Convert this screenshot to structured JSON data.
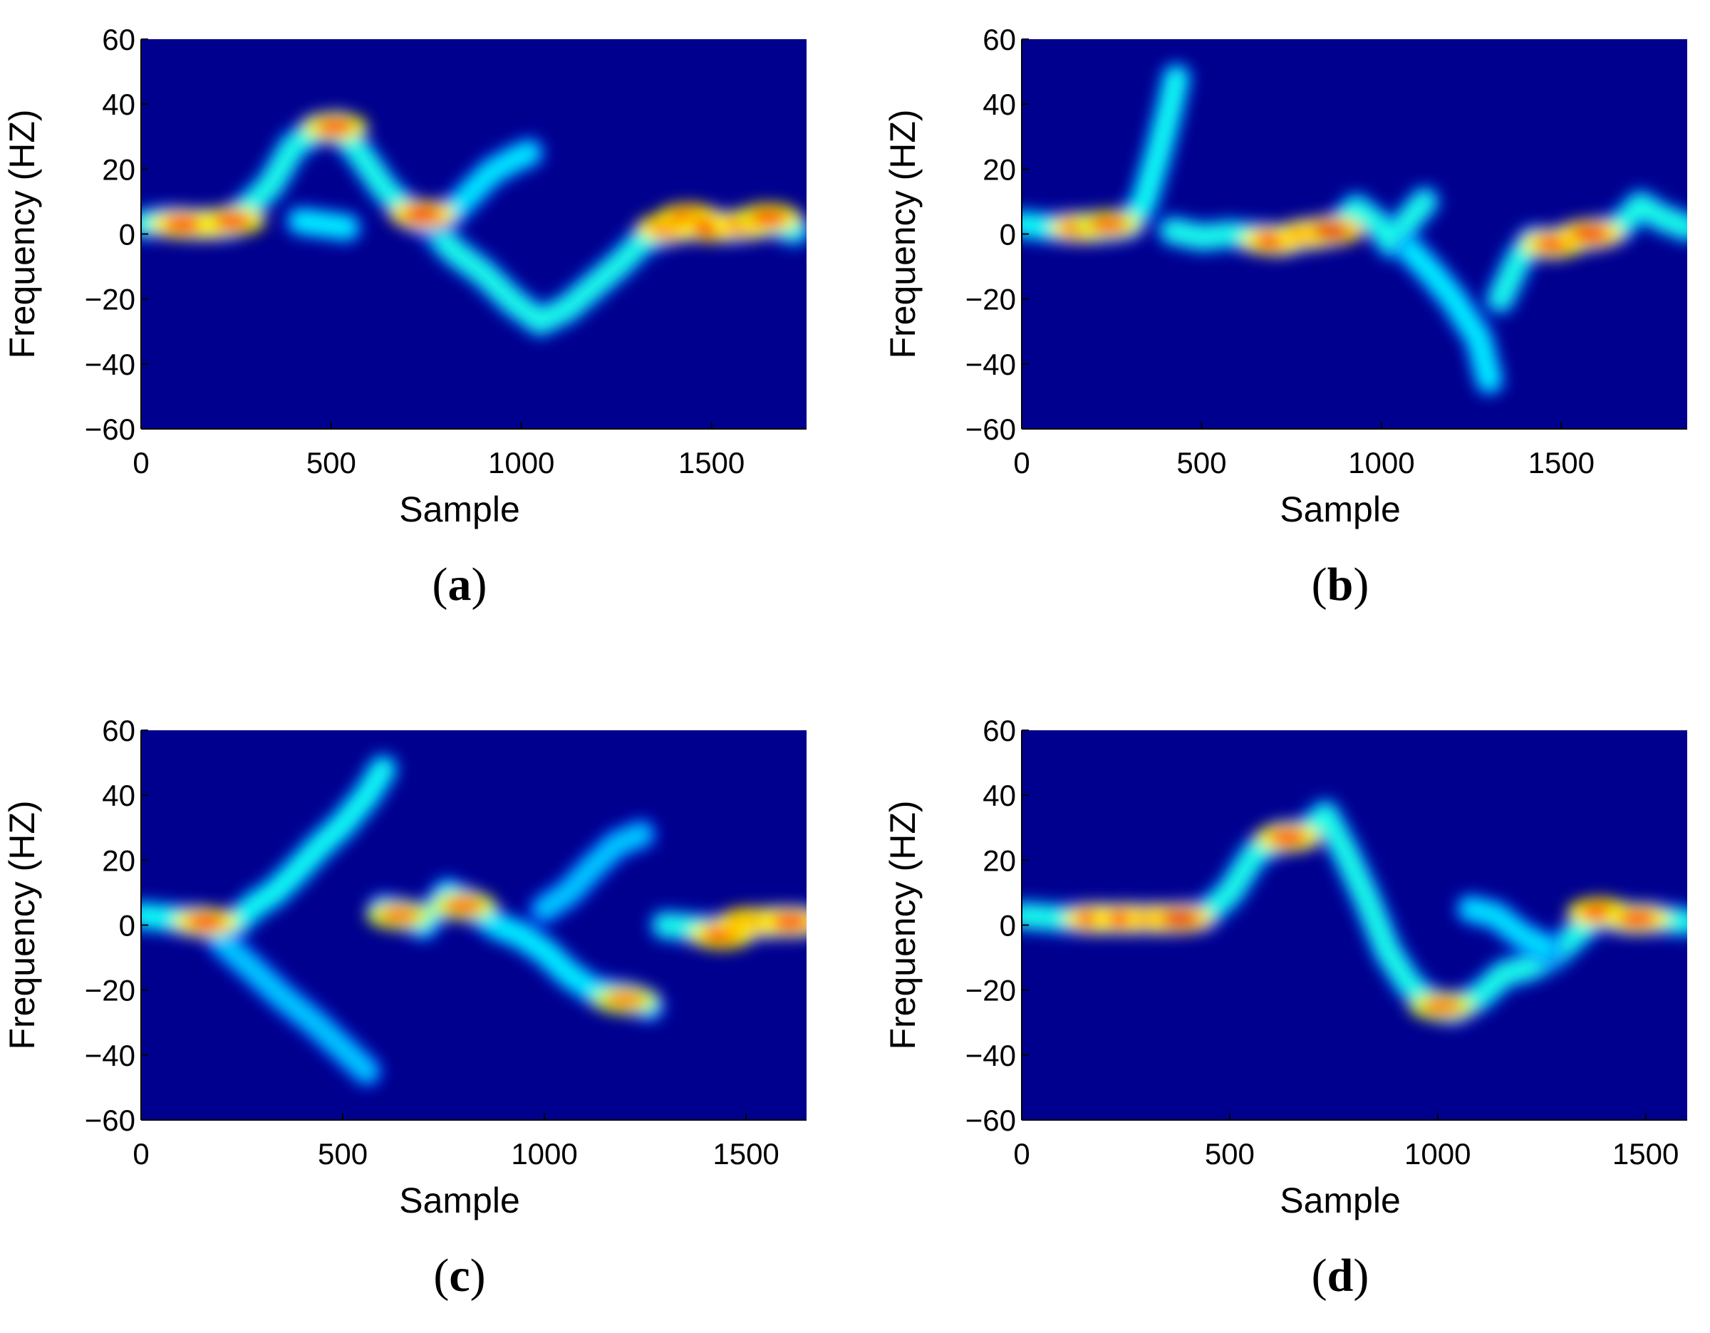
{
  "chart_data": [
    {
      "panel": "(a)",
      "type": "heatmap",
      "title": "",
      "xlabel": "Sample",
      "ylabel": "Frequency (HZ)",
      "xlim": [
        0,
        1750
      ],
      "ylim": [
        -60,
        60
      ],
      "xticks": [
        0,
        500,
        1000,
        1500
      ],
      "yticks": [
        60,
        40,
        20,
        0,
        -20,
        -40,
        -60
      ],
      "colormap": "jet",
      "background": "#00008f",
      "ridges": [
        {
          "points": [
            [
              0,
              3
            ],
            [
              60,
              4
            ],
            [
              150,
              3
            ],
            [
              230,
              3
            ],
            [
              280,
              8
            ],
            [
              340,
              15
            ],
            [
              400,
              27
            ],
            [
              460,
              32
            ],
            [
              520,
              33
            ],
            [
              580,
              24
            ],
            [
              640,
              14
            ],
            [
              700,
              7
            ],
            [
              760,
              3
            ],
            [
              820,
              -5
            ],
            [
              900,
              -12
            ],
            [
              980,
              -21
            ],
            [
              1050,
              -27
            ],
            [
              1120,
              -23
            ],
            [
              1200,
              -15
            ],
            [
              1260,
              -9
            ],
            [
              1320,
              -2
            ],
            [
              1400,
              2
            ],
            [
              1480,
              3
            ],
            [
              1560,
              2
            ],
            [
              1650,
              4
            ],
            [
              1720,
              1
            ]
          ],
          "intensity": 0.6
        },
        {
          "points": [
            [
              760,
              4
            ],
            [
              820,
              7
            ],
            [
              870,
              13
            ],
            [
              920,
              19
            ],
            [
              980,
              23
            ],
            [
              1020,
              25
            ]
          ],
          "intensity": 0.42
        },
        {
          "points": [
            [
              420,
              4
            ],
            [
              480,
              3
            ],
            [
              540,
              2
            ]
          ],
          "intensity": 0.45
        }
      ],
      "hotspots": [
        {
          "x": 170,
          "y": 3,
          "intensity": 1.0
        },
        {
          "x": 110,
          "y": 3,
          "intensity": 0.85
        },
        {
          "x": 240,
          "y": 4,
          "intensity": 0.8
        },
        {
          "x": 510,
          "y": 33,
          "intensity": 0.75
        },
        {
          "x": 740,
          "y": 6,
          "intensity": 0.95
        },
        {
          "x": 1390,
          "y": 2,
          "intensity": 0.9
        },
        {
          "x": 1440,
          "y": 5,
          "intensity": 0.95
        },
        {
          "x": 1500,
          "y": 2,
          "intensity": 0.95
        },
        {
          "x": 1590,
          "y": 3,
          "intensity": 0.9
        },
        {
          "x": 1650,
          "y": 5,
          "intensity": 0.8
        }
      ]
    },
    {
      "panel": "(b)",
      "type": "heatmap",
      "title": "",
      "xlabel": "Sample",
      "ylabel": "Frequency (HZ)",
      "xlim": [
        0,
        1850
      ],
      "ylim": [
        -60,
        60
      ],
      "xticks": [
        0,
        500,
        1000,
        1500
      ],
      "yticks": [
        60,
        40,
        20,
        0,
        -20,
        -40,
        -60
      ],
      "colormap": "jet",
      "background": "#00008f",
      "ridges": [
        {
          "points": [
            [
              0,
              3
            ],
            [
              80,
              2
            ],
            [
              160,
              2
            ],
            [
              240,
              2
            ],
            [
              300,
              3
            ],
            [
              340,
              10
            ],
            [
              380,
              25
            ],
            [
              410,
              38
            ],
            [
              430,
              48
            ]
          ],
          "intensity": 0.55
        },
        {
          "points": [
            [
              420,
              1
            ],
            [
              500,
              -1
            ],
            [
              580,
              0
            ],
            [
              660,
              -1
            ],
            [
              720,
              -2
            ],
            [
              800,
              0
            ],
            [
              870,
              1
            ],
            [
              930,
              8
            ],
            [
              990,
              3
            ],
            [
              1030,
              -3
            ],
            [
              1080,
              5
            ],
            [
              1120,
              10
            ]
          ],
          "intensity": 0.6
        },
        {
          "points": [
            [
              1080,
              -5
            ],
            [
              1140,
              -12
            ],
            [
              1200,
              -20
            ],
            [
              1240,
              -27
            ],
            [
              1270,
              -32
            ],
            [
              1300,
              -45
            ]
          ],
          "intensity": 0.45
        },
        {
          "points": [
            [
              1330,
              -20
            ],
            [
              1380,
              -8
            ],
            [
              1420,
              -2
            ],
            [
              1480,
              -3
            ],
            [
              1540,
              -1
            ],
            [
              1600,
              0
            ],
            [
              1660,
              2
            ],
            [
              1720,
              9
            ],
            [
              1780,
              5
            ],
            [
              1850,
              2
            ]
          ],
          "intensity": 0.6
        }
      ],
      "hotspots": [
        {
          "x": 170,
          "y": 2,
          "intensity": 0.95
        },
        {
          "x": 240,
          "y": 3,
          "intensity": 0.7
        },
        {
          "x": 700,
          "y": -2,
          "intensity": 0.85
        },
        {
          "x": 800,
          "y": 0,
          "intensity": 0.9
        },
        {
          "x": 860,
          "y": 1,
          "intensity": 1.0
        },
        {
          "x": 1480,
          "y": -3,
          "intensity": 0.8
        },
        {
          "x": 1580,
          "y": 0,
          "intensity": 0.95
        }
      ]
    },
    {
      "panel": "(c)",
      "type": "heatmap",
      "title": "",
      "xlabel": "Sample",
      "ylabel": "Frequency (HZ)",
      "xlim": [
        0,
        1650
      ],
      "ylim": [
        -60,
        60
      ],
      "xticks": [
        0,
        500,
        1000,
        1500
      ],
      "yticks": [
        60,
        40,
        20,
        0,
        -20,
        -40,
        -60
      ],
      "colormap": "jet",
      "background": "#00008f",
      "ridges": [
        {
          "points": [
            [
              0,
              3
            ],
            [
              80,
              2
            ],
            [
              150,
              1
            ],
            [
              220,
              -1
            ],
            [
              280,
              6
            ],
            [
              330,
              10
            ],
            [
              380,
              16
            ],
            [
              440,
              24
            ],
            [
              500,
              31
            ],
            [
              560,
              40
            ],
            [
              600,
              48
            ]
          ],
          "intensity": 0.55
        },
        {
          "points": [
            [
              200,
              -5
            ],
            [
              280,
              -14
            ],
            [
              350,
              -22
            ],
            [
              430,
              -30
            ],
            [
              500,
              -38
            ],
            [
              560,
              -45
            ]
          ],
          "intensity": 0.3
        },
        {
          "points": [
            [
              600,
              5
            ],
            [
              660,
              3
            ],
            [
              700,
              0
            ],
            [
              760,
              10
            ],
            [
              820,
              6
            ],
            [
              880,
              0
            ],
            [
              940,
              -3
            ],
            [
              1000,
              -8
            ],
            [
              1060,
              -15
            ],
            [
              1120,
              -20
            ],
            [
              1200,
              -22
            ],
            [
              1260,
              -25
            ]
          ],
          "intensity": 0.45
        },
        {
          "points": [
            [
              1000,
              5
            ],
            [
              1060,
              10
            ],
            [
              1120,
              18
            ],
            [
              1180,
              25
            ],
            [
              1240,
              28
            ]
          ],
          "intensity": 0.3
        },
        {
          "points": [
            [
              1300,
              0
            ],
            [
              1380,
              -1
            ],
            [
              1440,
              -2
            ],
            [
              1500,
              0
            ],
            [
              1580,
              1
            ],
            [
              1650,
              1
            ]
          ],
          "intensity": 0.6
        }
      ],
      "hotspots": [
        {
          "x": 160,
          "y": 1,
          "intensity": 0.8
        },
        {
          "x": 640,
          "y": 3,
          "intensity": 0.6
        },
        {
          "x": 800,
          "y": 6,
          "intensity": 0.65
        },
        {
          "x": 1200,
          "y": -23,
          "intensity": 0.55
        },
        {
          "x": 1440,
          "y": -3,
          "intensity": 0.8
        },
        {
          "x": 1510,
          "y": 1,
          "intensity": 0.95
        },
        {
          "x": 1560,
          "y": 1,
          "intensity": 1.0
        },
        {
          "x": 1610,
          "y": 1,
          "intensity": 0.85
        }
      ]
    },
    {
      "panel": "(d)",
      "type": "heatmap",
      "title": "",
      "xlabel": "Sample",
      "ylabel": "Frequency (HZ)",
      "xlim": [
        0,
        1600
      ],
      "ylim": [
        -60,
        60
      ],
      "xticks": [
        0,
        500,
        1000,
        1500
      ],
      "yticks": [
        60,
        40,
        20,
        0,
        -20,
        -40,
        -60
      ],
      "colormap": "jet",
      "background": "#00008f",
      "ridges": [
        {
          "points": [
            [
              0,
              3
            ],
            [
              100,
              2
            ],
            [
              200,
              2
            ],
            [
              280,
              2
            ],
            [
              360,
              2
            ],
            [
              440,
              3
            ],
            [
              500,
              10
            ],
            [
              560,
              22
            ],
            [
              620,
              27
            ],
            [
              680,
              28
            ],
            [
              730,
              34
            ],
            [
              780,
              22
            ],
            [
              830,
              8
            ],
            [
              880,
              -8
            ],
            [
              930,
              -18
            ],
            [
              980,
              -24
            ],
            [
              1040,
              -26
            ],
            [
              1100,
              -22
            ],
            [
              1160,
              -15
            ],
            [
              1220,
              -13
            ],
            [
              1280,
              -9
            ],
            [
              1340,
              -2
            ],
            [
              1380,
              3
            ],
            [
              1460,
              2
            ],
            [
              1520,
              2
            ],
            [
              1600,
              1
            ]
          ],
          "intensity": 0.6
        },
        {
          "points": [
            [
              1080,
              5
            ],
            [
              1140,
              3
            ],
            [
              1200,
              -3
            ],
            [
              1260,
              -7
            ]
          ],
          "intensity": 0.4
        }
      ],
      "hotspots": [
        {
          "x": 180,
          "y": 2,
          "intensity": 0.95
        },
        {
          "x": 250,
          "y": 2,
          "intensity": 0.9
        },
        {
          "x": 330,
          "y": 2,
          "intensity": 1.0
        },
        {
          "x": 380,
          "y": 2,
          "intensity": 1.0
        },
        {
          "x": 640,
          "y": 27,
          "intensity": 0.8
        },
        {
          "x": 1010,
          "y": -25,
          "intensity": 0.6
        },
        {
          "x": 1390,
          "y": 4,
          "intensity": 0.85
        },
        {
          "x": 1480,
          "y": 2,
          "intensity": 0.8
        }
      ]
    }
  ]
}
